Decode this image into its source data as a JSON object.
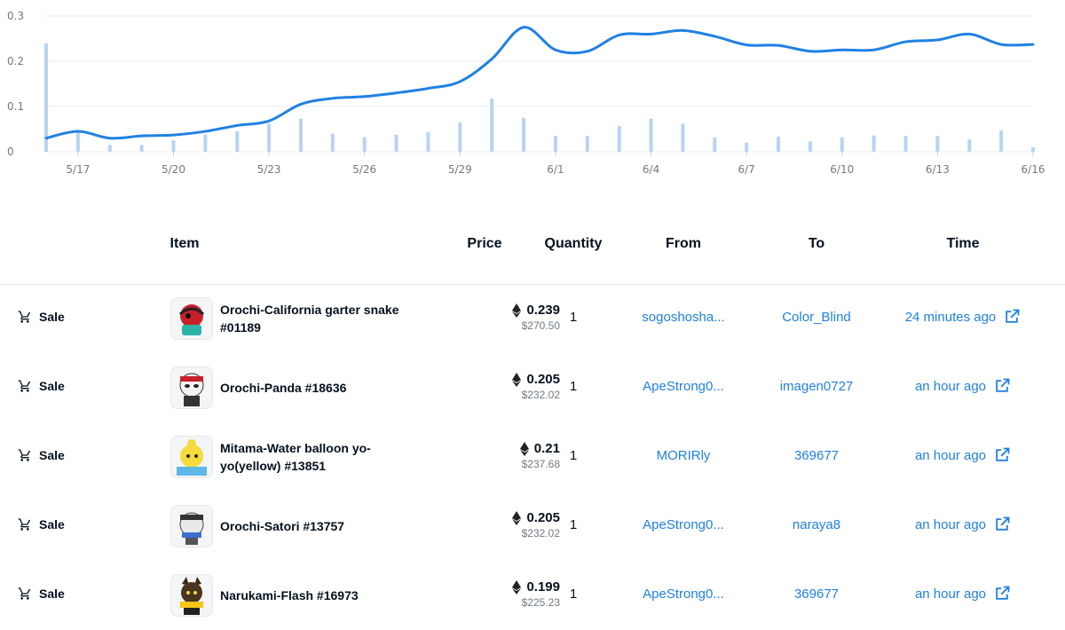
{
  "chart_data": {
    "type": "bar+line",
    "x_ticks": [
      "5/17",
      "5/20",
      "5/23",
      "5/26",
      "5/29",
      "6/1",
      "6/4",
      "6/7",
      "6/10",
      "6/13",
      "6/16"
    ],
    "y_ticks": [
      "0",
      "0.1",
      "0.2",
      "0.3"
    ],
    "ylim": [
      0,
      0.3
    ],
    "x_start_day": 0,
    "x_end_day": 31,
    "volume": [
      0.24,
      0.045,
      0.015,
      0.015,
      0.025,
      0.038,
      0.045,
      0.062,
      0.073,
      0.04,
      0.032,
      0.038,
      0.043,
      0.065,
      0.118,
      0.075,
      0.035,
      0.035,
      0.057,
      0.073,
      0.062,
      0.032,
      0.02,
      0.033,
      0.023,
      0.032,
      0.036,
      0.035,
      0.035,
      0.027,
      0.047,
      0.01
    ],
    "avg_price": [
      0.03,
      0.045,
      0.03,
      0.035,
      0.037,
      0.045,
      0.058,
      0.068,
      0.105,
      0.118,
      0.122,
      0.13,
      0.14,
      0.155,
      0.205,
      0.275,
      0.225,
      0.222,
      0.258,
      0.26,
      0.268,
      0.255,
      0.236,
      0.235,
      0.222,
      0.225,
      0.225,
      0.243,
      0.247,
      0.26,
      0.237,
      0.237
    ],
    "bar_color": "#b7d4f2",
    "line_color": "#2081e2"
  },
  "table": {
    "headers": {
      "item": "Item",
      "price": "Price",
      "quantity": "Quantity",
      "from": "From",
      "to": "To",
      "time": "Time"
    },
    "rows": [
      {
        "event": "Sale",
        "name": "Orochi-California garter snake #01189",
        "eth": "0.239",
        "usd": "$270.50",
        "qty": "1",
        "from": "sogoshosha...",
        "to": "Color_Blind",
        "time": "24 minutes ago",
        "thumb": "snake"
      },
      {
        "event": "Sale",
        "name": "Orochi-Panda #18636",
        "eth": "0.205",
        "usd": "$232.02",
        "qty": "1",
        "from": "ApeStrong0...",
        "to": "imagen0727",
        "time": "an hour ago",
        "thumb": "panda"
      },
      {
        "event": "Sale",
        "name": "Mitama-Water balloon yo-yo(yellow) #13851",
        "eth": "0.21",
        "usd": "$237.68",
        "qty": "1",
        "from": "MORIRly",
        "to": "369677",
        "time": "an hour ago",
        "thumb": "yellow"
      },
      {
        "event": "Sale",
        "name": "Orochi-Satori #13757",
        "eth": "0.205",
        "usd": "$232.02",
        "qty": "1",
        "from": "ApeStrong0...",
        "to": "naraya8",
        "time": "an hour ago",
        "thumb": "satori"
      },
      {
        "event": "Sale",
        "name": "Narukami-Flash #16973",
        "eth": "0.199",
        "usd": "$225.23",
        "qty": "1",
        "from": "ApeStrong0...",
        "to": "369677",
        "time": "an hour ago",
        "thumb": "flash"
      }
    ]
  }
}
